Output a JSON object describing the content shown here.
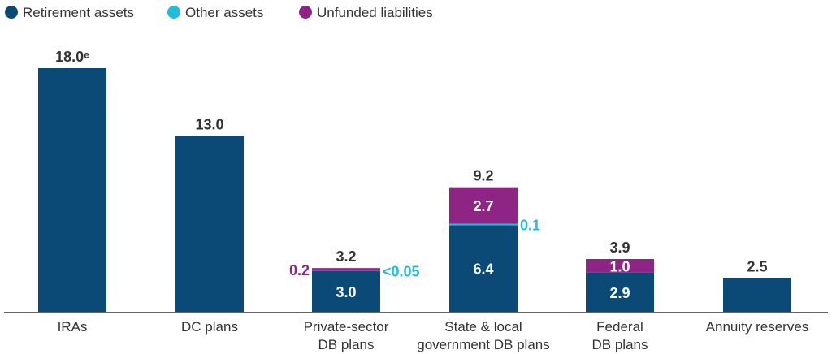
{
  "colors": {
    "retirement": "#0b4a76",
    "other": "#22bcd8",
    "unfunded": "#8e2585",
    "axis": "#666666"
  },
  "chart_data": {
    "type": "bar",
    "stacked": true,
    "legend": [
      {
        "key": "retirement",
        "label": "Retirement assets"
      },
      {
        "key": "other",
        "label": "Other assets"
      },
      {
        "key": "unfunded",
        "label": "Unfunded liabilities"
      }
    ],
    "ylim": [
      0,
      18.0
    ],
    "categories": [
      {
        "lines": [
          "IRAs"
        ],
        "total": "18.0ᵉ",
        "segments": [
          {
            "series": "retirement",
            "value": 18.0
          }
        ]
      },
      {
        "lines": [
          "DC plans"
        ],
        "total": "13.0",
        "segments": [
          {
            "series": "retirement",
            "value": 13.0
          }
        ]
      },
      {
        "lines": [
          "Private-sector",
          "DB plans"
        ],
        "total": "3.2",
        "segments": [
          {
            "series": "retirement",
            "value": 3.0,
            "label": "3.0"
          },
          {
            "series": "other",
            "value": 0.03,
            "label": "<0.05",
            "label_pos": "right"
          },
          {
            "series": "unfunded",
            "value": 0.2,
            "label": "0.2",
            "label_pos": "left"
          }
        ]
      },
      {
        "lines": [
          "State & local",
          "government DB plans"
        ],
        "total": "9.2",
        "segments": [
          {
            "series": "retirement",
            "value": 6.4,
            "label": "6.4"
          },
          {
            "series": "other",
            "value": 0.1,
            "label": "0.1",
            "label_pos": "right"
          },
          {
            "series": "unfunded",
            "value": 2.7,
            "label": "2.7"
          }
        ]
      },
      {
        "lines": [
          "Federal",
          "DB plans"
        ],
        "total": "3.9",
        "segments": [
          {
            "series": "retirement",
            "value": 2.9,
            "label": "2.9"
          },
          {
            "series": "unfunded",
            "value": 1.0,
            "label": "1.0"
          }
        ]
      },
      {
        "lines": [
          "Annuity reserves"
        ],
        "total": "2.5",
        "segments": [
          {
            "series": "retirement",
            "value": 2.5
          }
        ]
      }
    ]
  }
}
